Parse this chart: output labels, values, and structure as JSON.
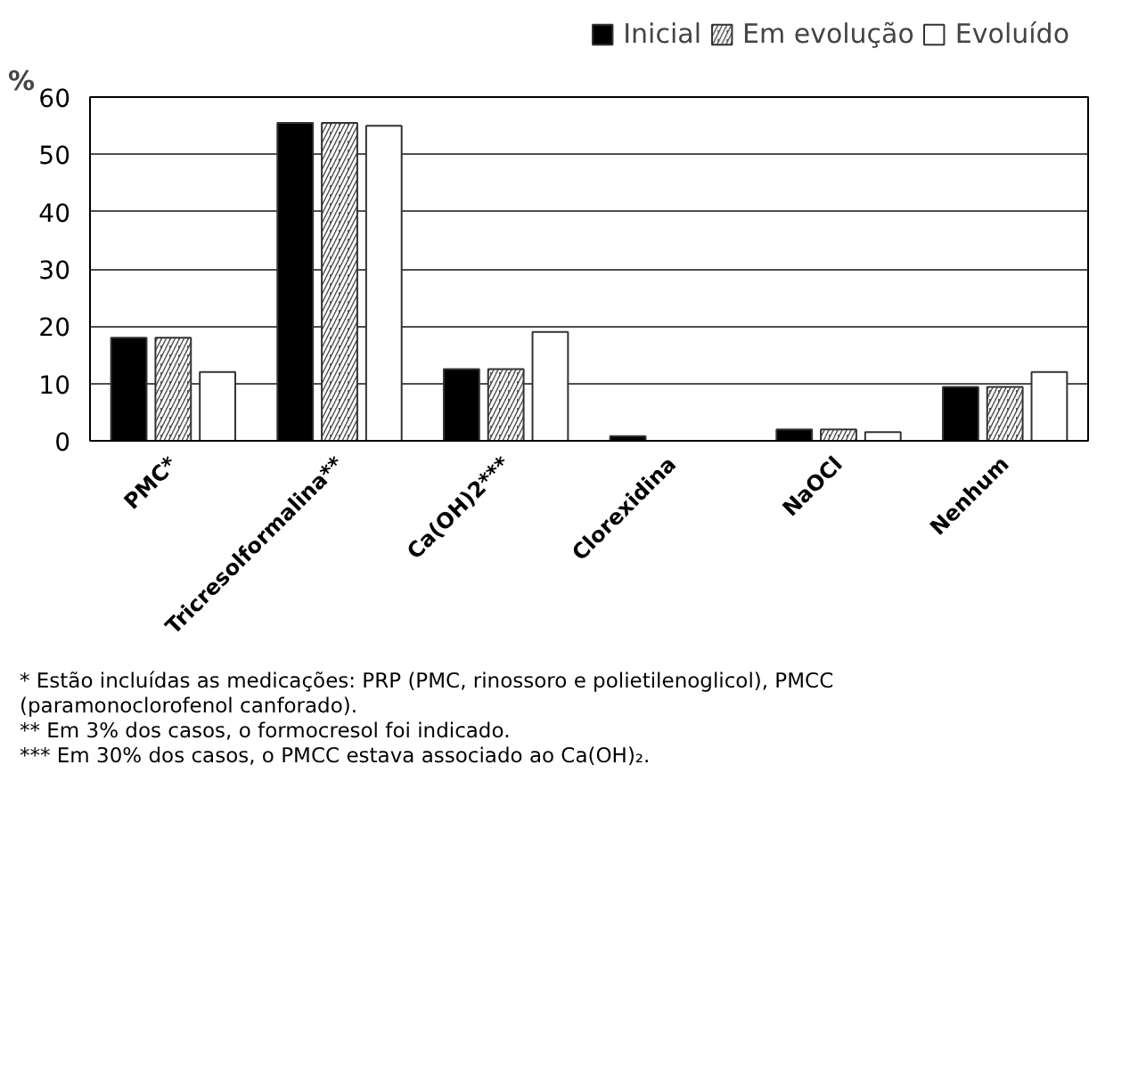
{
  "chart_data": {
    "type": "bar",
    "ylabel": "%",
    "categories": [
      "PMC*",
      "Tricresolformalina**",
      "Ca(OH)2***",
      "Clorexidina",
      "NaOCl",
      "Nenhum"
    ],
    "series": [
      {
        "name": "Inicial",
        "color": "#000000",
        "values": [
          18,
          55.5,
          12.5,
          0.8,
          2,
          9.4
        ]
      },
      {
        "name": "Em evolução",
        "color": "#555555",
        "values": [
          18,
          55.5,
          12.5,
          0,
          2,
          9.4
        ]
      },
      {
        "name": "Evoluído",
        "color": "#ffffff",
        "values": [
          12,
          55,
          19,
          0,
          1.5,
          12
        ]
      }
    ],
    "ylim": [
      0,
      60
    ],
    "yticks": [
      0,
      10,
      20,
      30,
      40,
      50,
      60
    ],
    "grid": "y",
    "legend": "top right",
    "annotations": [
      "* Estão incluídas as medicações: PRP (PMC, rinossoro e polietilenoglicol), PMCC (paramonoclorofenol canforado).",
      "** Em 3% dos casos, o formocresol foi indicado.",
      "*** Em 30% dos casos, o PMCC estava associado ao Ca(OH)₂."
    ]
  }
}
